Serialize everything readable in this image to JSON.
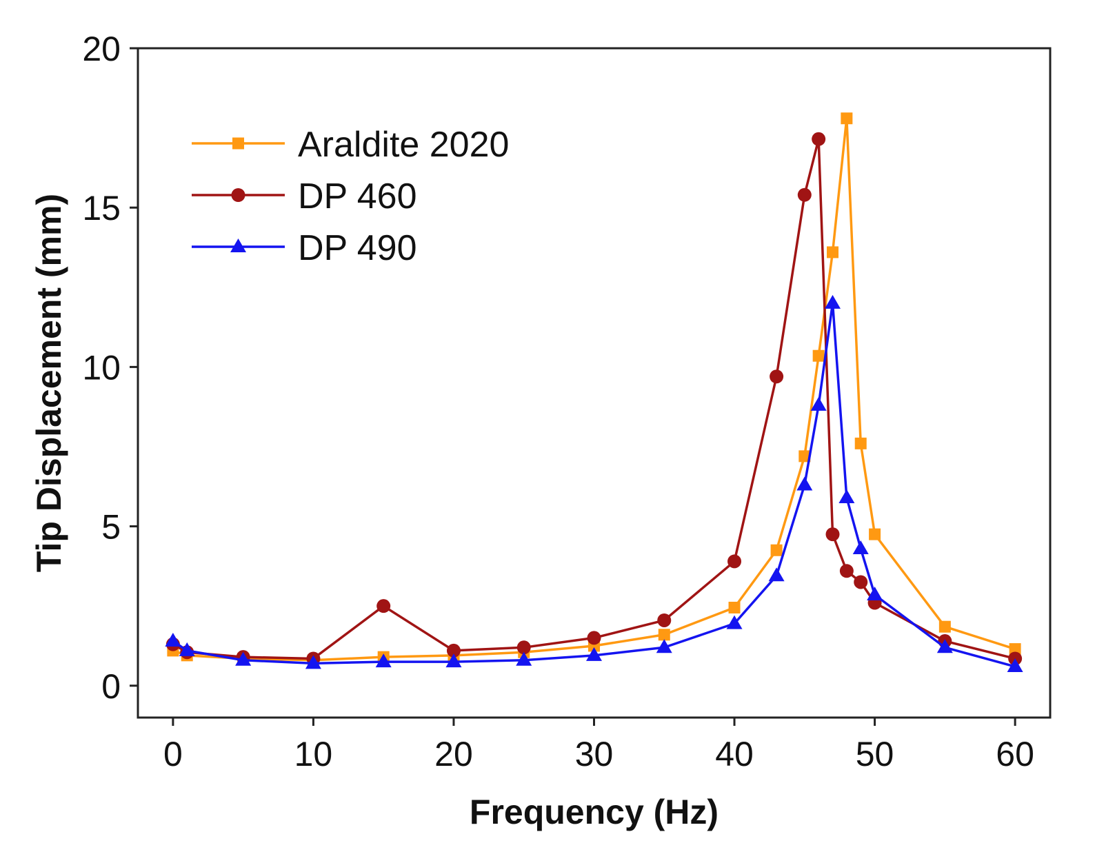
{
  "chart_data": {
    "type": "line",
    "xlabel": "Frequency (Hz)",
    "ylabel": "Tip Displacement (mm)",
    "xlim": [
      -2.5,
      62.5
    ],
    "ylim": [
      -1,
      20
    ],
    "xticks": [
      0,
      10,
      20,
      30,
      40,
      50,
      60
    ],
    "yticks": [
      0,
      5,
      10,
      15,
      20
    ],
    "grid": false,
    "legend_position": "top-left",
    "series": [
      {
        "name": "Araldite 2020",
        "color": "#FF9912",
        "marker": "square",
        "x": [
          0,
          1,
          5,
          10,
          15,
          20,
          25,
          30,
          35,
          40,
          43,
          45,
          46,
          47,
          48,
          49,
          50,
          55,
          60
        ],
        "y": [
          1.1,
          0.95,
          0.85,
          0.8,
          0.9,
          0.95,
          1.05,
          1.25,
          1.6,
          2.45,
          4.25,
          7.2,
          10.35,
          13.6,
          17.8,
          7.6,
          4.75,
          1.85,
          1.15
        ]
      },
      {
        "name": "DP 460",
        "color": "#A01414",
        "marker": "circle",
        "x": [
          0,
          1,
          5,
          10,
          15,
          20,
          25,
          30,
          35,
          40,
          43,
          45,
          46,
          47,
          48,
          49,
          50,
          55,
          60
        ],
        "y": [
          1.3,
          1.05,
          0.9,
          0.85,
          2.5,
          1.1,
          1.2,
          1.5,
          2.05,
          3.9,
          9.7,
          15.4,
          17.15,
          4.75,
          3.6,
          3.25,
          2.6,
          1.4,
          0.85
        ]
      },
      {
        "name": "DP 490",
        "color": "#1414F0",
        "marker": "triangle",
        "x": [
          0,
          1,
          5,
          10,
          15,
          20,
          25,
          30,
          35,
          40,
          43,
          45,
          46,
          47,
          48,
          49,
          50,
          55,
          60
        ],
        "y": [
          1.4,
          1.1,
          0.8,
          0.7,
          0.75,
          0.75,
          0.8,
          0.95,
          1.2,
          1.95,
          3.45,
          6.3,
          8.8,
          12.0,
          5.9,
          4.3,
          2.85,
          1.2,
          0.6
        ]
      }
    ]
  }
}
